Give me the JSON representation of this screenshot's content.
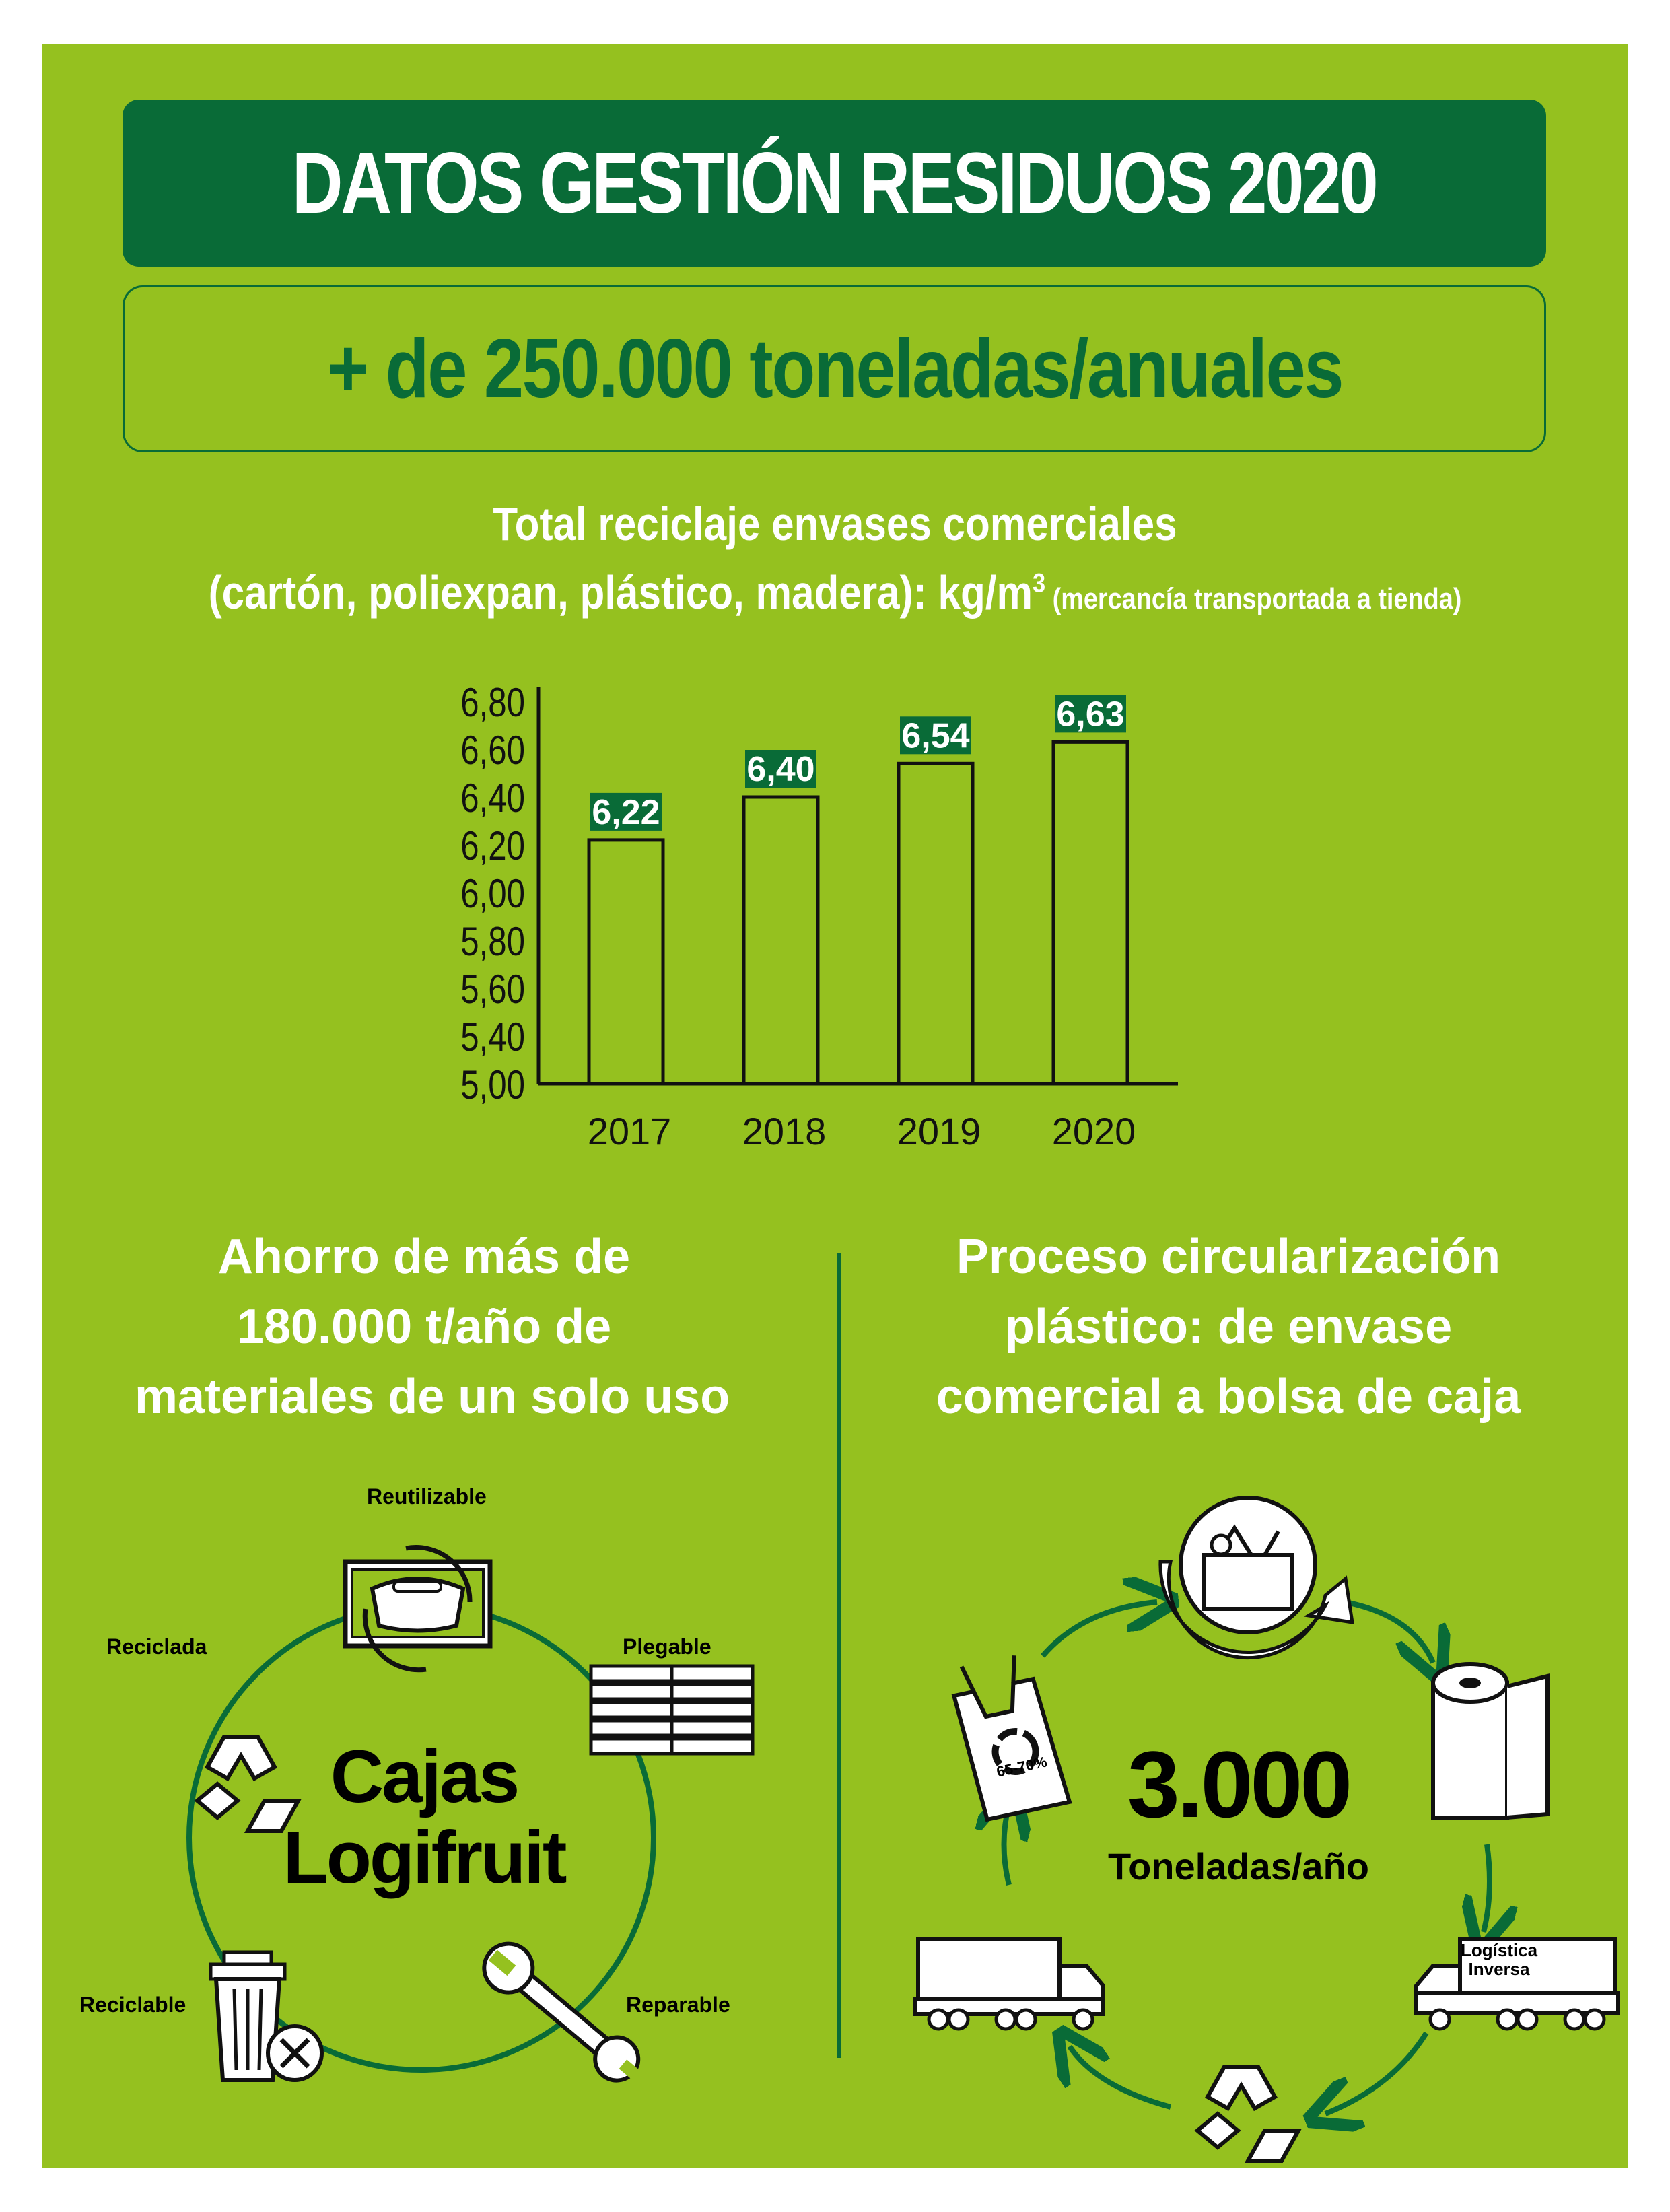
{
  "header": {
    "title": "DATOS GESTIÓN RESIDUOS 2020",
    "subtitle": "+ de 250.000 toneladas/anuales"
  },
  "colors": {
    "panel": "#95c11f",
    "dark_green": "#096b37",
    "white": "#ffffff",
    "black": "#111111"
  },
  "chart_title": {
    "line1": "Total reciclaje envases comerciales",
    "line2": "(cartón, poliexpan, plástico, madera): kg/m",
    "sup": "3",
    "note": " (mercancía transportada a tienda)"
  },
  "chart_data": {
    "type": "bar",
    "categories": [
      "2017",
      "2018",
      "2019",
      "2020"
    ],
    "values": [
      6.22,
      6.4,
      6.54,
      6.63
    ],
    "value_labels": [
      "6,22",
      "6,40",
      "6,54",
      "6,63"
    ],
    "yticks": [
      "6,80",
      "6,60",
      "6,40",
      "6,20",
      "6,00",
      "5,80",
      "5,60",
      "5,40",
      "5,00"
    ],
    "ylim": [
      5.0,
      6.8
    ],
    "grid": false,
    "legend": "none"
  },
  "left_section": {
    "title_lines": [
      "Ahorro de más de",
      "180.000 t/año de",
      "materiales de un solo uso"
    ],
    "center_lines": [
      "Cajas",
      "Logifruit"
    ],
    "labels": {
      "reutilizable": "Reutilizable",
      "plegable": "Plegable",
      "reparable": "Reparable",
      "reciclable": "Reciclable",
      "reciclada": "Reciclada"
    },
    "icons": [
      "crate-reuse-icon",
      "stacked-crates-icon",
      "wrench-icon",
      "trash-bin-icon",
      "recycle-icon"
    ]
  },
  "right_section": {
    "title_lines": [
      "Proceso circularización",
      "plástico: de envase",
      "comercial a bolsa de caja"
    ],
    "center_value": "3.000",
    "center_unit": "Toneladas/año",
    "truck_label_lines": [
      "Logística",
      "Inversa"
    ],
    "bag_label": "65-70%",
    "icons": [
      "shopping-basket-icon",
      "plastic-roll-icon",
      "reverse-logistics-truck-icon",
      "recycle-icon",
      "delivery-truck-icon",
      "shopping-bag-icon"
    ]
  }
}
